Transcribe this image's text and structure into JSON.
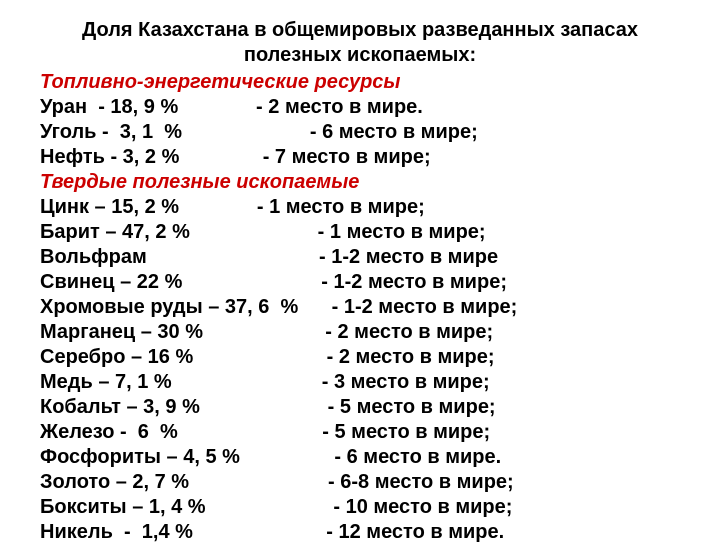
{
  "colors": {
    "text": "#000000",
    "section": "#cc0000",
    "background": "#ffffff"
  },
  "typography": {
    "font_family": "Arial, sans-serif",
    "title_fontsize": 20,
    "body_fontsize": 20,
    "title_weight": "bold",
    "body_weight": "bold",
    "section_style": "italic"
  },
  "title_line1": "Доля Казахстана в общемировых разведанных запасах",
  "title_line2": "полезных ископаемых:",
  "section1": "Топливно-энергетические ресурсы",
  "rows1": [
    "Уран  - 18, 9 %              - 2 место в мире.",
    "Уголь -  3, 1  %                       - 6 место в мире;",
    "Нефть - 3, 2 %               - 7 место в мире;"
  ],
  "section2": "Твердые полезные ископаемые",
  "rows2": [
    "Цинк – 15, 2 %              - 1 место в мире;",
    "Барит – 47, 2 %                       - 1 место в мире;",
    "Вольфрам                               - 1-2 место в мире",
    "Свинец – 22 %                         - 1-2 место в мире;",
    "Хромовые руды – 37, 6  %      - 1-2 место в мире;",
    "Марганец – 30 %                      - 2 место в мире;",
    "Серебро – 16 %                        - 2 место в мире;",
    "Медь – 7, 1 %                           - 3 место в мире;",
    "Кобальт – 3, 9 %                       - 5 место в мире;",
    "Железо -  6  %                          - 5 место в мире;",
    "Фосфориты – 4, 5 %                 - 6 место в мире.",
    "Золото – 2, 7 %                         - 6-8 место в мире;",
    "Бокситы – 1, 4 %                       - 10 место в мире;",
    "Никель  -  1,4 %                        - 12 место в мире."
  ]
}
